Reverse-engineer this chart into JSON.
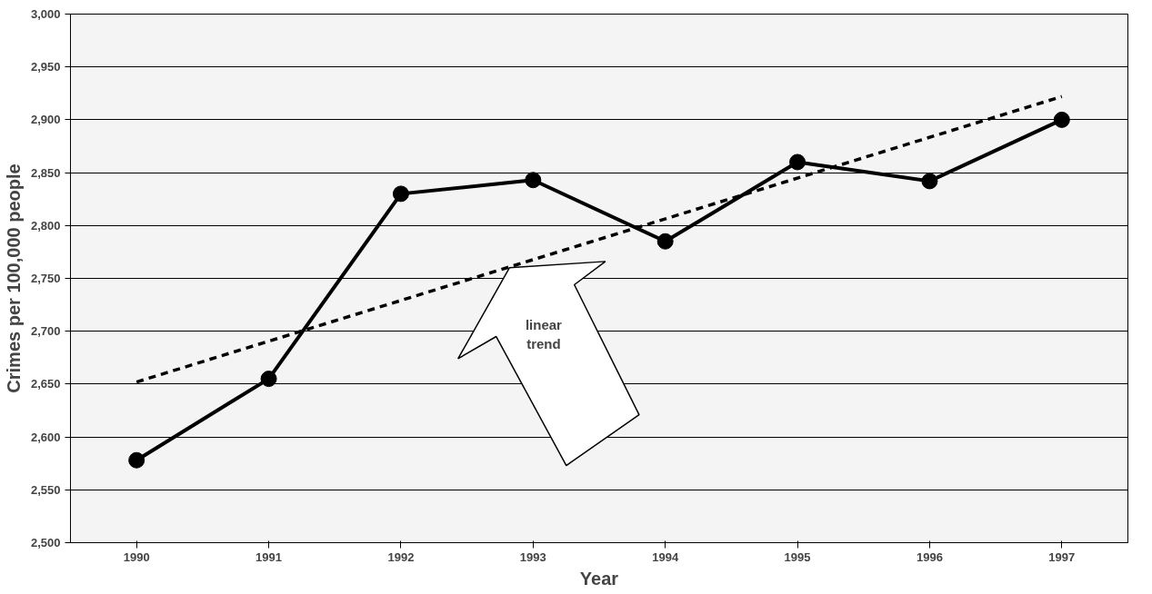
{
  "chart_data": {
    "type": "line",
    "xlabel": "Year",
    "ylabel": "Crimes per 100,000 people",
    "x": [
      1990,
      1991,
      1992,
      1993,
      1994,
      1995,
      1996,
      1997
    ],
    "xlim": [
      1989.5,
      1997.5
    ],
    "xticks": [
      1990,
      1991,
      1992,
      1993,
      1994,
      1995,
      1996,
      1997
    ],
    "series": [
      {
        "color": "#000000",
        "values": [
          2578,
          2655,
          2830,
          2843,
          2785,
          2860,
          2842,
          2900
        ],
        "marker": "circle",
        "line_style": "solid"
      },
      {
        "type": "line",
        "color": "#000000",
        "x": [
          1990,
          1997
        ],
        "values": [
          2652,
          2922
        ],
        "marker": "none",
        "line_style": "dashed"
      }
    ],
    "ylim": [
      2500,
      3000
    ],
    "yticks": [
      {
        "value": 2500,
        "label": "2,500"
      },
      {
        "value": 2550,
        "label": "2,550"
      },
      {
        "value": 2600,
        "label": "2,600"
      },
      {
        "value": 2650,
        "label": "2,650"
      },
      {
        "value": 2700,
        "label": "2,700"
      },
      {
        "value": 2750,
        "label": "2,750"
      },
      {
        "value": 2800,
        "label": "2,800"
      },
      {
        "value": 2850,
        "label": "2,850"
      },
      {
        "value": 2900,
        "label": "2,900"
      },
      {
        "value": 2950,
        "label": "2,950"
      },
      {
        "value": 3000,
        "label": "3,000"
      }
    ],
    "grid": "y",
    "annotations": [
      "linear trend"
    ]
  }
}
